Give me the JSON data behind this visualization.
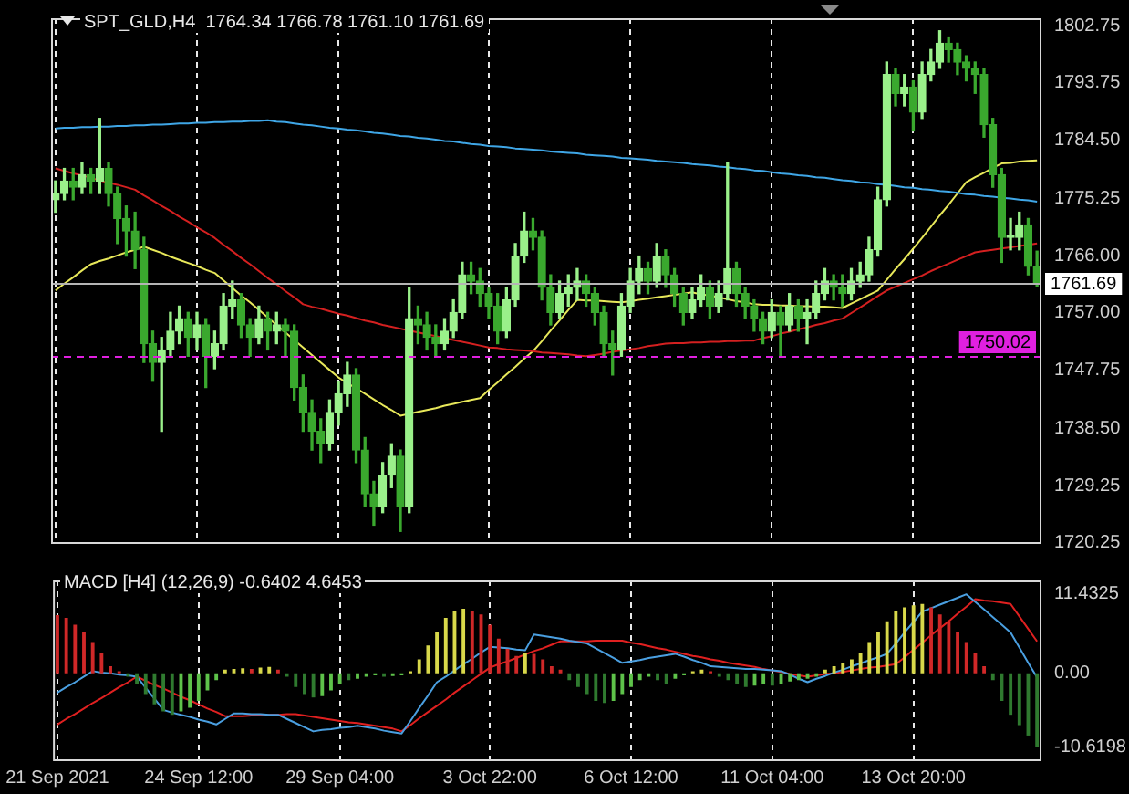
{
  "chart_data": [
    {
      "type": "candlestick",
      "title": "SPT_GLD,H4  1764.34 1766.78 1761.10 1761.69",
      "colors": [
        "#9af08a",
        "#9af08a",
        "#3aa82e",
        "#9af08a",
        "#3aa82e",
        "#9af08a",
        "#3aa82e",
        "#3aa82e",
        "#3aa82e",
        "#3aa82e",
        "#3aa82e",
        "#3aa82e",
        "#9af08a",
        "#9af08a",
        "#9af08a",
        "#3aa82e",
        "#9af08a",
        "#3aa82e",
        "#9af08a",
        "#9af08a",
        "#9af08a",
        "#3aa82e",
        "#3aa82e",
        "#9af08a",
        "#3aa82e",
        "#9af08a",
        "#3aa82e",
        "#3aa82e",
        "#3aa82e",
        "#3aa82e",
        "#3aa82e",
        "#9af08a",
        "#9af08a",
        "#9af08a",
        "#3aa82e",
        "#3aa82e",
        "#3aa82e",
        "#9af08a",
        "#9af08a",
        "#3aa82e",
        "#9af08a",
        "#3aa82e",
        "#3aa82e",
        "#3aa82e",
        "#9af08a",
        "#9af08a",
        "#9af08a",
        "#3aa82e",
        "#3aa82e",
        "#3aa82e",
        "#3aa82e",
        "#9af08a",
        "#9af08a",
        "#9af08a",
        "#3aa82e",
        "#3aa82e",
        "#3aa82e",
        "#9af08a",
        "#9af08a",
        "#9af08a",
        "#3aa82e",
        "#3aa82e",
        "#3aa82e",
        "#3aa82e",
        "#9af08a",
        "#9af08a",
        "#9af08a",
        "#3aa82e",
        "#9af08a",
        "#3aa82e",
        "#3aa82e",
        "#3aa82e",
        "#9af08a",
        "#9af08a",
        "#3aa82e",
        "#9af08a",
        "#9af08a",
        "#3aa82e",
        "#3aa82e",
        "#3aa82e",
        "#3aa82e",
        "#9af08a",
        "#3aa82e",
        "#9af08a",
        "#3aa82e",
        "#9af08a",
        "#9af08a",
        "#9af08a",
        "#3aa82e",
        "#3aa82e",
        "#9af08a",
        "#9af08a",
        "#9af08a",
        "#9af08a",
        "#9af08a",
        "#3aa82e",
        "#9af08a",
        "#3aa82e",
        "#9af08a",
        "#9af08a",
        "#9af08a",
        "#3aa82e",
        "#3aa82e",
        "#3aa82e",
        "#3aa82e",
        "#3aa82e",
        "#3aa82e",
        "#3aa82e",
        "#9af08a",
        "#9af08a",
        "#3aa82e",
        "#3aa82e"
      ],
      "tick_labels": "y",
      "grid": "x",
      "categories": [
        null,
        null,
        null,
        null,
        null,
        null,
        null,
        null,
        null,
        null,
        null,
        null,
        null,
        null,
        null,
        null,
        null,
        null,
        null,
        null,
        null,
        null,
        null,
        null,
        null,
        null,
        null,
        null,
        null,
        null,
        null,
        null,
        null,
        null,
        null,
        null,
        null,
        null,
        null,
        null,
        null,
        null,
        null,
        null,
        null,
        null,
        null,
        null,
        null,
        null,
        null,
        null,
        null,
        null,
        null,
        null,
        null,
        null,
        null,
        null,
        null,
        null,
        null,
        null,
        null,
        null,
        null,
        null,
        null,
        null,
        null,
        null,
        null,
        null,
        null,
        null,
        null,
        null,
        null,
        null,
        null,
        null,
        null,
        null,
        null,
        null,
        null,
        null,
        null,
        null,
        null,
        null,
        null,
        null,
        null,
        null,
        null,
        null,
        null,
        null,
        null,
        null,
        null,
        null,
        null,
        null,
        null,
        null,
        null,
        null,
        null,
        null
      ],
      "ohlc": [
        [
          1775,
          1778,
          1773,
          1776
        ],
        [
          1776,
          1780,
          1775,
          1778
        ],
        [
          1778,
          1780,
          1775,
          1777
        ],
        [
          1777,
          1781,
          1776,
          1779
        ],
        [
          1779,
          1780,
          1776,
          1778
        ],
        [
          1778,
          1788,
          1776,
          1780
        ],
        [
          1780,
          1781,
          1774,
          1776
        ],
        [
          1776,
          1777,
          1768,
          1772
        ],
        [
          1772,
          1774,
          1766,
          1770
        ],
        [
          1770,
          1773,
          1764,
          1767
        ],
        [
          1767,
          1769,
          1749,
          1752
        ],
        [
          1752,
          1754,
          1746,
          1749
        ],
        [
          1749,
          1753,
          1738,
          1751
        ],
        [
          1751,
          1757,
          1750,
          1754
        ],
        [
          1754,
          1758,
          1752,
          1756
        ],
        [
          1756,
          1757,
          1750,
          1753
        ],
        [
          1753,
          1757,
          1751,
          1755
        ],
        [
          1755,
          1756,
          1745,
          1750
        ],
        [
          1750,
          1754,
          1748,
          1752
        ],
        [
          1752,
          1760,
          1751,
          1758
        ],
        [
          1758,
          1762,
          1756,
          1759
        ],
        [
          1759,
          1760,
          1753,
          1755
        ],
        [
          1755,
          1756,
          1750,
          1753
        ],
        [
          1753,
          1758,
          1752,
          1756
        ],
        [
          1756,
          1757,
          1751,
          1754
        ],
        [
          1754,
          1757,
          1752,
          1755
        ],
        [
          1755,
          1756,
          1750,
          1754
        ],
        [
          1754,
          1755,
          1743,
          1745
        ],
        [
          1745,
          1747,
          1738,
          1741
        ],
        [
          1741,
          1743,
          1735,
          1738
        ],
        [
          1738,
          1740,
          1733,
          1736
        ],
        [
          1736,
          1743,
          1735,
          1741
        ],
        [
          1741,
          1746,
          1739,
          1744
        ],
        [
          1744,
          1749,
          1742,
          1747
        ],
        [
          1747,
          1748,
          1733,
          1735
        ],
        [
          1735,
          1737,
          1726,
          1728
        ],
        [
          1728,
          1730,
          1723,
          1726
        ],
        [
          1726,
          1733,
          1725,
          1731
        ],
        [
          1731,
          1736,
          1729,
          1734
        ],
        [
          1734,
          1735,
          1722,
          1726
        ],
        [
          1726,
          1761,
          1725,
          1756
        ],
        [
          1756,
          1758,
          1752,
          1755
        ],
        [
          1755,
          1757,
          1751,
          1753
        ],
        [
          1753,
          1755,
          1750,
          1752
        ],
        [
          1752,
          1756,
          1751,
          1754
        ],
        [
          1754,
          1759,
          1753,
          1757
        ],
        [
          1757,
          1765,
          1756,
          1763
        ],
        [
          1763,
          1765,
          1760,
          1762
        ],
        [
          1762,
          1764,
          1758,
          1760
        ],
        [
          1760,
          1761,
          1756,
          1758
        ],
        [
          1758,
          1760,
          1752,
          1754
        ],
        [
          1754,
          1761,
          1753,
          1759
        ],
        [
          1759,
          1768,
          1758,
          1766
        ],
        [
          1766,
          1773,
          1765,
          1770
        ],
        [
          1770,
          1772,
          1767,
          1769
        ],
        [
          1769,
          1770,
          1759,
          1761
        ],
        [
          1761,
          1763,
          1755,
          1757
        ],
        [
          1757,
          1762,
          1756,
          1760
        ],
        [
          1760,
          1763,
          1758,
          1761
        ],
        [
          1761,
          1764,
          1759,
          1762
        ],
        [
          1762,
          1763,
          1758,
          1760
        ],
        [
          1760,
          1761,
          1755,
          1757
        ],
        [
          1757,
          1758,
          1750,
          1752
        ],
        [
          1752,
          1754,
          1747,
          1751
        ],
        [
          1751,
          1760,
          1750,
          1758
        ],
        [
          1758,
          1764,
          1757,
          1762
        ],
        [
          1762,
          1766,
          1760,
          1764
        ],
        [
          1764,
          1765,
          1760,
          1762
        ],
        [
          1762,
          1768,
          1761,
          1766
        ],
        [
          1766,
          1767,
          1761,
          1763
        ],
        [
          1763,
          1764,
          1758,
          1760
        ],
        [
          1760,
          1761,
          1755,
          1757
        ],
        [
          1757,
          1761,
          1756,
          1759
        ],
        [
          1759,
          1763,
          1758,
          1761
        ],
        [
          1761,
          1762,
          1756,
          1758
        ],
        [
          1758,
          1762,
          1757,
          1760
        ],
        [
          1760,
          1781,
          1759,
          1764
        ],
        [
          1764,
          1765,
          1758,
          1760
        ],
        [
          1760,
          1761,
          1756,
          1758
        ],
        [
          1758,
          1759,
          1754,
          1756
        ],
        [
          1756,
          1757,
          1752,
          1754
        ],
        [
          1754,
          1759,
          1753,
          1757
        ],
        [
          1757,
          1758,
          1750,
          1755
        ],
        [
          1755,
          1760,
          1754,
          1758
        ],
        [
          1758,
          1759,
          1754,
          1756
        ],
        [
          1756,
          1759,
          1752,
          1757
        ],
        [
          1757,
          1762,
          1756,
          1760
        ],
        [
          1760,
          1764,
          1759,
          1762
        ],
        [
          1762,
          1763,
          1759,
          1761
        ],
        [
          1761,
          1763,
          1758,
          1760
        ],
        [
          1760,
          1764,
          1759,
          1762
        ],
        [
          1762,
          1765,
          1761,
          1763
        ],
        [
          1763,
          1769,
          1762,
          1767
        ],
        [
          1767,
          1777,
          1766,
          1775
        ],
        [
          1775,
          1797,
          1774,
          1795
        ],
        [
          1795,
          1796,
          1790,
          1792
        ],
        [
          1792,
          1795,
          1790,
          1793
        ],
        [
          1793,
          1794,
          1786,
          1789
        ],
        [
          1789,
          1797,
          1788,
          1795
        ],
        [
          1795,
          1799,
          1794,
          1797
        ],
        [
          1797,
          1802,
          1796,
          1800
        ],
        [
          1800,
          1801,
          1797,
          1799
        ],
        [
          1799,
          1800,
          1795,
          1797
        ],
        [
          1797,
          1798,
          1794,
          1796
        ],
        [
          1796,
          1797,
          1792,
          1795
        ],
        [
          1795,
          1796,
          1785,
          1787
        ],
        [
          1787,
          1788,
          1777,
          1779
        ],
        [
          1779,
          1780,
          1765,
          1769
        ],
        [
          1769,
          1772,
          1767,
          1769
        ],
        [
          1769,
          1773,
          1767,
          1771
        ],
        [
          1771,
          1772,
          1763,
          1764.34
        ],
        [
          1764.34,
          1766.78,
          1761.1,
          1761.69
        ]
      ],
      "series": [
        {
          "type": "line",
          "color": "#3fa6e6",
          "values": [
            1786.4,
            1786.5,
            1786.5,
            1786.6,
            1786.6,
            1786.7,
            1786.7,
            1786.8,
            1786.8,
            1786.9,
            1786.9,
            1787.0,
            1787.0,
            1787.1,
            1787.2,
            1787.2,
            1787.3,
            1787.3,
            1787.4,
            1787.4,
            1787.5,
            1787.5,
            1787.6,
            1787.6,
            1787.7,
            1787.5,
            1787.4,
            1787.2,
            1787.0,
            1786.9,
            1786.7,
            1786.5,
            1786.4,
            1786.2,
            1786.1,
            1785.9,
            1785.7,
            1785.6,
            1785.4,
            1785.2,
            1785.1,
            1784.9,
            1784.8,
            1784.6,
            1784.4,
            1784.3,
            1784.1,
            1783.9,
            1783.8,
            1783.6,
            1783.5,
            1783.4,
            1783.2,
            1783.1,
            1783.0,
            1782.9,
            1782.7,
            1782.6,
            1782.5,
            1782.4,
            1782.2,
            1782.1,
            1782.0,
            1781.9,
            1781.7,
            1781.6,
            1781.5,
            1781.4,
            1781.2,
            1781.1,
            1781.0,
            1780.9,
            1780.7,
            1780.6,
            1780.5,
            1780.3,
            1780.2,
            1780.0,
            1779.9,
            1779.7,
            1779.6,
            1779.4,
            1779.2,
            1779.1,
            1778.9,
            1778.8,
            1778.6,
            1778.5,
            1778.3,
            1778.1,
            1778.0,
            1777.8,
            1777.7,
            1777.5,
            1777.4,
            1777.2,
            1777.0,
            1776.9,
            1776.7,
            1776.6,
            1776.4,
            1776.3,
            1776.1,
            1775.9,
            1775.8,
            1775.6,
            1775.5,
            1775.3,
            1775.2,
            1775.0,
            1774.9,
            1774.7
          ]
        },
        {
          "type": "line",
          "color": "#d42020",
          "values": [
            1780,
            1779.6,
            1779.2,
            1778.9,
            1778.5,
            1778.1,
            1777.7,
            1777.4,
            1777.0,
            1776.6,
            1775.7,
            1774.9,
            1774.0,
            1773.2,
            1772.3,
            1771.5,
            1770.6,
            1769.8,
            1768.9,
            1767.8,
            1766.8,
            1765.7,
            1764.7,
            1763.6,
            1762.5,
            1761.5,
            1760.4,
            1759.4,
            1758.3,
            1757.9,
            1757.6,
            1757.2,
            1756.8,
            1756.5,
            1756.1,
            1755.7,
            1755.4,
            1755.0,
            1754.7,
            1754.4,
            1754.1,
            1753.8,
            1753.5,
            1753.2,
            1752.9,
            1752.6,
            1752.3,
            1752.0,
            1751.7,
            1751.4,
            1751.3,
            1751.1,
            1751.0,
            1750.9,
            1750.8,
            1750.6,
            1750.5,
            1750.4,
            1750.3,
            1750.1,
            1750.0,
            1750.2,
            1750.4,
            1750.7,
            1750.9,
            1751.1,
            1751.3,
            1751.6,
            1751.8,
            1752.0,
            1752.1,
            1752.1,
            1752.2,
            1752.2,
            1752.3,
            1752.3,
            1752.4,
            1752.4,
            1752.5,
            1752.5,
            1752.9,
            1753.2,
            1753.6,
            1753.9,
            1754.3,
            1754.6,
            1755.0,
            1755.3,
            1755.7,
            1756.0,
            1756.9,
            1757.8,
            1758.7,
            1759.6,
            1760.5,
            1761.1,
            1761.7,
            1762.3,
            1762.9,
            1763.6,
            1764.2,
            1764.8,
            1765.4,
            1766.0,
            1766.6,
            1766.8,
            1767.0,
            1767.2,
            1767.4,
            1767.6,
            1767.8,
            1768.0
          ]
        },
        {
          "type": "line",
          "color": "#e8e85a",
          "values": [
            1760.5,
            1761.6,
            1762.6,
            1763.7,
            1764.7,
            1765.2,
            1765.6,
            1766.1,
            1766.6,
            1767.0,
            1767.5,
            1767.0,
            1766.5,
            1765.9,
            1765.4,
            1764.9,
            1764.4,
            1763.8,
            1763.3,
            1762.1,
            1760.9,
            1759.7,
            1758.6,
            1757.4,
            1756.2,
            1755.0,
            1753.8,
            1752.6,
            1751.4,
            1750.2,
            1749.0,
            1747.8,
            1746.6,
            1745.7,
            1744.9,
            1744.0,
            1743.1,
            1742.2,
            1741.4,
            1740.5,
            1740.8,
            1741.1,
            1741.4,
            1741.7,
            1742.1,
            1742.4,
            1742.7,
            1743.0,
            1743.3,
            1744.6,
            1745.8,
            1747.1,
            1748.3,
            1749.6,
            1750.8,
            1752.4,
            1754.1,
            1755.7,
            1757.4,
            1759.0,
            1758.9,
            1758.9,
            1758.8,
            1758.7,
            1758.6,
            1758.8,
            1759.0,
            1759.2,
            1759.4,
            1759.6,
            1759.8,
            1760.0,
            1760.2,
            1759.9,
            1759.7,
            1759.4,
            1759.1,
            1758.8,
            1758.6,
            1758.3,
            1758.2,
            1758.2,
            1758.1,
            1758.1,
            1758.0,
            1758.0,
            1757.9,
            1757.9,
            1757.8,
            1757.7,
            1758.4,
            1759.1,
            1759.8,
            1760.5,
            1762.2,
            1763.9,
            1765.5,
            1767.2,
            1768.9,
            1770.7,
            1772.5,
            1774.2,
            1776.0,
            1777.8,
            1778.6,
            1779.3,
            1780.1,
            1780.8,
            1780.9,
            1781.1,
            1781.2,
            1781.3
          ]
        }
      ],
      "ylim": [
        1720,
        1804
      ],
      "yticks": [
        1802.75,
        1793.75,
        {
          "value": 1784.5,
          "label": "1784.50"
        },
        1775.25,
        {
          "value": 1766,
          "label": "1766.00"
        },
        {
          "value": 1757,
          "label": "1757.00"
        },
        1747.75,
        {
          "value": 1738.5,
          "label": "1738.50"
        },
        1729.25,
        1720.25
      ],
      "ref_lines": [
        {
          "axis": "y",
          "value": 1761.69,
          "label": "1761.69",
          "color": "#b4b4b4",
          "line_style": "solid"
        },
        {
          "axis": "y",
          "value": 1750.02,
          "label": "1750.02",
          "color": "#e020e0",
          "line_style": "dashed"
        }
      ]
    },
    {
      "type": "bar",
      "title": "MACD [H4] (12,26,9) -0.6402 4.6453",
      "grid": "x",
      "categories": [
        "21 Sep 2021",
        null,
        null,
        null,
        null,
        null,
        null,
        null,
        null,
        null,
        null,
        null,
        null,
        null,
        null,
        null,
        "24 Sep 12:00",
        null,
        null,
        null,
        null,
        null,
        null,
        null,
        null,
        null,
        null,
        null,
        null,
        null,
        null,
        null,
        "29 Sep 04:00",
        null,
        null,
        null,
        null,
        null,
        null,
        null,
        null,
        null,
        null,
        null,
        null,
        null,
        null,
        null,
        null,
        "3 Oct 22:00",
        null,
        null,
        null,
        null,
        null,
        null,
        null,
        null,
        null,
        null,
        null,
        null,
        null,
        null,
        null,
        "6 Oct 12:00",
        null,
        null,
        null,
        null,
        null,
        null,
        null,
        null,
        null,
        null,
        null,
        null,
        null,
        null,
        null,
        "11 Oct 04:00",
        null,
        null,
        null,
        null,
        null,
        null,
        null,
        null,
        null,
        null,
        null,
        null,
        null,
        null,
        null,
        "13 Oct 20:00",
        null,
        null,
        null,
        null,
        null,
        null,
        null,
        null,
        null,
        null,
        null,
        null,
        null,
        null
      ],
      "series": [
        {
          "type": "bar",
          "values": [
            8.4,
            8,
            7,
            6,
            4.5,
            3,
            1,
            0.3,
            -0.5,
            -1.5,
            -3,
            -4.5,
            -5.5,
            -6,
            -5.5,
            -5,
            -4,
            -2.5,
            -1,
            0.5,
            0.6,
            0.7,
            0.6,
            0.8,
            0.9,
            0.5,
            -0.5,
            -2,
            -3,
            -3.5,
            -3.3,
            -2.5,
            -1.5,
            -1,
            -0.8,
            -0.5,
            -0.3,
            -0.5,
            -0.4,
            -0.3,
            0.3,
            2,
            4,
            6,
            8,
            9,
            9.3,
            9,
            8.5,
            7,
            5,
            3.5,
            2.5,
            3,
            2.8,
            2,
            1,
            0.5,
            -1,
            -2,
            -3,
            -4,
            -4.3,
            -4,
            -3,
            -2,
            -1,
            -0.5,
            -1,
            -1.5,
            -0.8,
            -0.3,
            0.3,
            0.5,
            0.3,
            -0.5,
            -1,
            -1.5,
            -2,
            -1.8,
            -1.5,
            -1.8,
            -1.5,
            -1.2,
            -1,
            -0.8,
            -0.5,
            0.5,
            1,
            1.5,
            2,
            3,
            4.5,
            6,
            7.5,
            9,
            9.5,
            9.8,
            10,
            9.5,
            8.5,
            7.5,
            6,
            4.5,
            3,
            1,
            -1,
            -4,
            -6,
            -7.5,
            -9,
            -10.6
          ],
          "colors": [
            "#d02828",
            "#d02828",
            "#d02828",
            "#d02828",
            "#d02828",
            "#d02828",
            "#d02828",
            "#d02828",
            "#2f7a2f",
            "#2f7a2f",
            "#2f7a2f",
            "#2f7a2f",
            "#2f7a2f",
            "#2f7a2f",
            "#5ec24a",
            "#5ec24a",
            "#5ec24a",
            "#5ec24a",
            "#5ec24a",
            "#d8d84a",
            "#d8d84a",
            "#d8d84a",
            "#d02828",
            "#d8d84a",
            "#d8d84a",
            "#d02828",
            "#2f7a2f",
            "#2f7a2f",
            "#2f7a2f",
            "#2f7a2f",
            "#5ec24a",
            "#5ec24a",
            "#5ec24a",
            "#2f7a2f",
            "#5ec24a",
            "#5ec24a",
            "#5ec24a",
            "#2f7a2f",
            "#5ec24a",
            "#5ec24a",
            "#d8d84a",
            "#d8d84a",
            "#d8d84a",
            "#d8d84a",
            "#d8d84a",
            "#d8d84a",
            "#d8d84a",
            "#d02828",
            "#d02828",
            "#d02828",
            "#d02828",
            "#d02828",
            "#d02828",
            "#d8d84a",
            "#d02828",
            "#d02828",
            "#d02828",
            "#d02828",
            "#2f7a2f",
            "#2f7a2f",
            "#2f7a2f",
            "#2f7a2f",
            "#2f7a2f",
            "#5ec24a",
            "#5ec24a",
            "#5ec24a",
            "#5ec24a",
            "#5ec24a",
            "#2f7a2f",
            "#2f7a2f",
            "#5ec24a",
            "#5ec24a",
            "#d8d84a",
            "#d8d84a",
            "#d02828",
            "#2f7a2f",
            "#2f7a2f",
            "#2f7a2f",
            "#2f7a2f",
            "#5ec24a",
            "#5ec24a",
            "#2f7a2f",
            "#5ec24a",
            "#5ec24a",
            "#5ec24a",
            "#5ec24a",
            "#5ec24a",
            "#d8d84a",
            "#d8d84a",
            "#d8d84a",
            "#d8d84a",
            "#d8d84a",
            "#d8d84a",
            "#d8d84a",
            "#d8d84a",
            "#d8d84a",
            "#d8d84a",
            "#d8d84a",
            "#d8d84a",
            "#d02828",
            "#d02828",
            "#d02828",
            "#d02828",
            "#d02828",
            "#d02828",
            "#d02828",
            "#2f7a2f",
            "#2f7a2f",
            "#2f7a2f",
            "#2f7a2f",
            "#2f7a2f",
            "#2f7a2f"
          ]
        },
        {
          "type": "line",
          "color": "#4a9fe0",
          "values": [
            -2.8,
            -2.0,
            -1.3,
            -0.5,
            0.3,
            0.1,
            0,
            -0.2,
            -0.3,
            -0.5,
            -2.1,
            -3.7,
            -5.3,
            -5.7,
            -6.0,
            -6.3,
            -6.7,
            -7.0,
            -7.4,
            -6.6,
            -5.8,
            -5.8,
            -5.9,
            -5.9,
            -6.0,
            -6.0,
            -6.6,
            -7.2,
            -7.8,
            -8.4,
            -8.2,
            -8.1,
            -7.9,
            -7.8,
            -7.6,
            -7.8,
            -8.0,
            -8.3,
            -8.5,
            -8.7,
            -6.9,
            -5.0,
            -3.2,
            -1.3,
            -0.5,
            0.4,
            1.3,
            2.1,
            3.0,
            3.8,
            3.7,
            3.6,
            3.4,
            3.3,
            5.6,
            5.4,
            5.2,
            5.0,
            4.7,
            4.5,
            4.3,
            3.6,
            2.9,
            2.2,
            1.5,
            1.7,
            1.9,
            2.2,
            2.4,
            2.6,
            2.8,
            2.4,
            1.9,
            1.5,
            1.0,
            0.9,
            0.8,
            0.7,
            0.6,
            0.6,
            0.5,
            0.4,
            0.3,
            -0.2,
            -0.8,
            -1.3,
            -0.8,
            -0.4,
            0.1,
            0.5,
            1.0,
            1.4,
            1.9,
            2.3,
            2.8,
            4.3,
            5.9,
            7.4,
            8.9,
            9.4,
            9.9,
            10.4,
            10.9,
            11.4,
            10.3,
            9.2,
            8.1,
            7.0,
            5.9,
            3.7,
            1.5,
            -0.6
          ]
        },
        {
          "type": "line",
          "color": "#e02020",
          "values": [
            -7.4,
            -6.6,
            -5.9,
            -5.1,
            -4.3,
            -3.6,
            -2.8,
            -2.0,
            -1.3,
            -0.5,
            -1.1,
            -1.7,
            -2.2,
            -2.8,
            -3.4,
            -3.9,
            -4.5,
            -5.1,
            -5.6,
            -6.2,
            -6.2,
            -6.2,
            -6.1,
            -6.1,
            -6.0,
            -6.0,
            -5.9,
            -5.9,
            -6.1,
            -6.3,
            -6.5,
            -6.7,
            -6.9,
            -7.1,
            -7.2,
            -7.4,
            -7.6,
            -7.8,
            -8.0,
            -8.4,
            -7.5,
            -6.5,
            -5.6,
            -4.7,
            -3.8,
            -2.8,
            -1.9,
            -1.0,
            -0.1,
            0.8,
            1.3,
            1.7,
            2.2,
            2.7,
            3.2,
            3.6,
            4.1,
            4.6,
            4.6,
            4.6,
            4.6,
            4.7,
            4.7,
            4.7,
            4.7,
            4.4,
            4.2,
            3.9,
            3.6,
            3.4,
            3.1,
            2.8,
            2.5,
            2.3,
            2.0,
            1.8,
            1.5,
            1.3,
            1.1,
            0.9,
            0.6,
            0.4,
            0.2,
            -0.1,
            -0.3,
            -0.5,
            -0.3,
            -0.1,
            0,
            0.2,
            0.4,
            0.6,
            0.8,
            0.9,
            1.1,
            1.3,
            2.3,
            3.4,
            4.4,
            5.5,
            6.5,
            7.5,
            8.6,
            9.6,
            10.7,
            10.5,
            10.4,
            10.2,
            10.0,
            8.2,
            6.4,
            4.6
          ]
        }
      ],
      "ylim": [
        -12.7,
        13.4
      ],
      "yticks": [
        11.4325,
        {
          "value": 0,
          "label": "0.00"
        },
        -10.6198
      ]
    }
  ]
}
